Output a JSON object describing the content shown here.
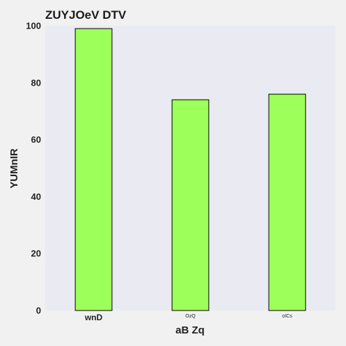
{
  "chart_data": {
    "type": "bar",
    "title": "ZUYJOeV DTV",
    "xlabel": "aB Zq",
    "ylabel": "YUMnIR",
    "categories": [
      "wnD",
      "OzQ",
      "oICs"
    ],
    "category_styles": [
      "large",
      "small",
      "small"
    ],
    "values": [
      99,
      74,
      76
    ],
    "ylim": [
      0,
      100
    ],
    "yticks": [
      0,
      20,
      40,
      60,
      80,
      100
    ],
    "grid": false,
    "bar_color": "#9dff5a",
    "bar_edge_color": "#000000",
    "plot_background": "#eaeaf2",
    "page_background": "#f1f1f1"
  }
}
